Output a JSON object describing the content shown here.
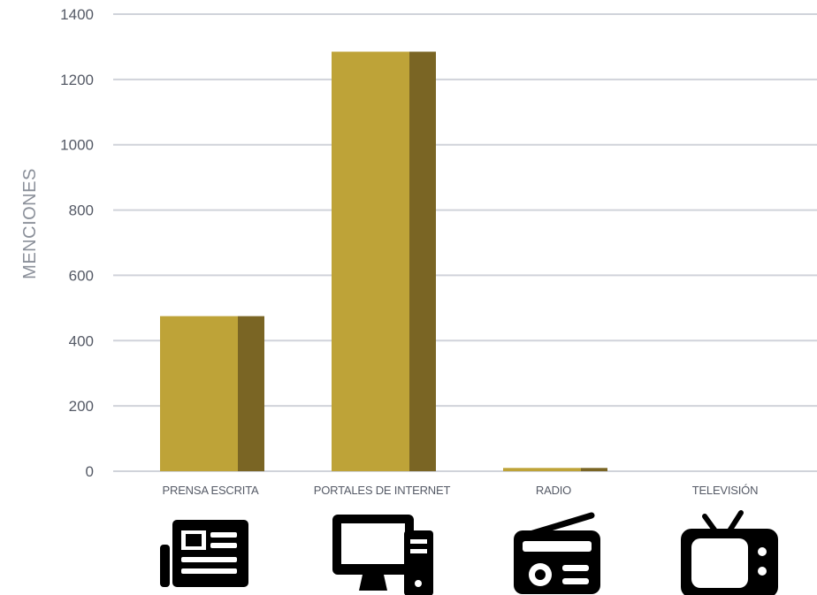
{
  "chart_data": {
    "type": "bar",
    "categories": [
      "PRENSA ESCRITA",
      "PORTALES DE INTERNET",
      "RADIO",
      "TELEVISIÓN"
    ],
    "values": [
      475,
      1285,
      10,
      0
    ],
    "ylabel": "MENCIONES",
    "ylim": [
      0,
      1400
    ],
    "yticks": [
      0,
      200,
      400,
      600,
      800,
      1000,
      1200,
      1400
    ],
    "grid": true,
    "colors": {
      "bar_face": "#bea338",
      "bar_side": "#7a6524",
      "grid": "#d0d3da",
      "tick_text": "#555a66"
    },
    "icons": [
      "newspaper-icon",
      "desktop-computer-icon",
      "radio-icon",
      "television-icon"
    ]
  }
}
